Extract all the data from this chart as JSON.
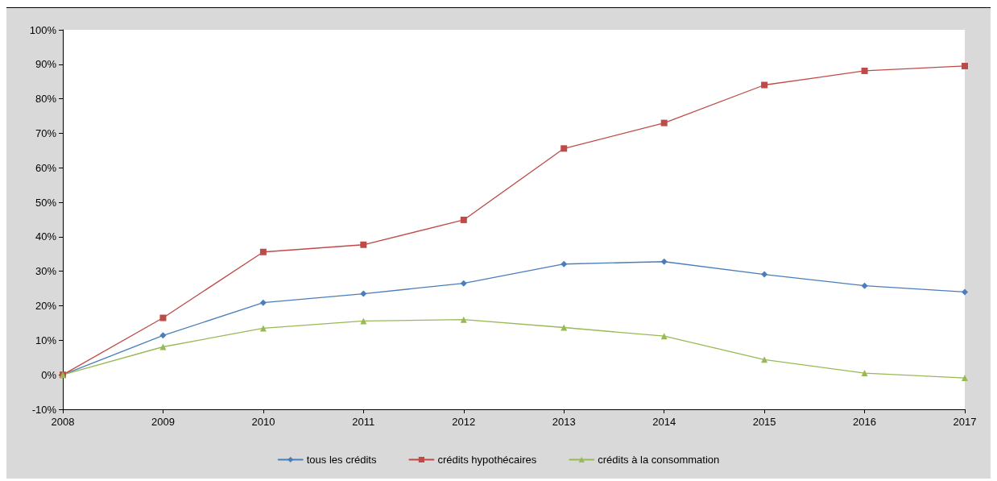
{
  "chart_data": {
    "type": "line",
    "categories": [
      "2008",
      "2009",
      "2010",
      "2011",
      "2012",
      "2013",
      "2014",
      "2015",
      "2016",
      "2017"
    ],
    "series": [
      {
        "name": "tous les crédits",
        "color": "#4a7ebb",
        "marker": "diamond",
        "values": [
          0,
          11.4,
          20.9,
          23.5,
          26.5,
          32.1,
          32.8,
          29.1,
          25.8,
          24.0
        ]
      },
      {
        "name": "crédits hypothécaires",
        "color": "#be4b48",
        "marker": "square",
        "values": [
          0,
          16.5,
          35.6,
          37.7,
          44.9,
          65.6,
          73.0,
          84.0,
          88.1,
          89.5
        ]
      },
      {
        "name": "crédits à la consommation",
        "color": "#98b954",
        "marker": "triangle",
        "values": [
          0,
          8.1,
          13.5,
          15.6,
          16.0,
          13.7,
          11.2,
          4.4,
          0.5,
          -0.9
        ]
      }
    ],
    "ylim": [
      -10,
      100
    ],
    "yticks": [
      {
        "value": -10,
        "label": "-10%"
      },
      {
        "value": 0,
        "label": "0%"
      },
      {
        "value": 10,
        "label": "10%"
      },
      {
        "value": 20,
        "label": "20%"
      },
      {
        "value": 30,
        "label": "30%"
      },
      {
        "value": 40,
        "label": "40%"
      },
      {
        "value": 50,
        "label": "50%"
      },
      {
        "value": 60,
        "label": "60%"
      },
      {
        "value": 70,
        "label": "70%"
      },
      {
        "value": 80,
        "label": "80%"
      },
      {
        "value": 90,
        "label": "90%"
      },
      {
        "value": 100,
        "label": "100%"
      }
    ],
    "grid": false,
    "legend": "bottom",
    "line_style": "solid"
  }
}
